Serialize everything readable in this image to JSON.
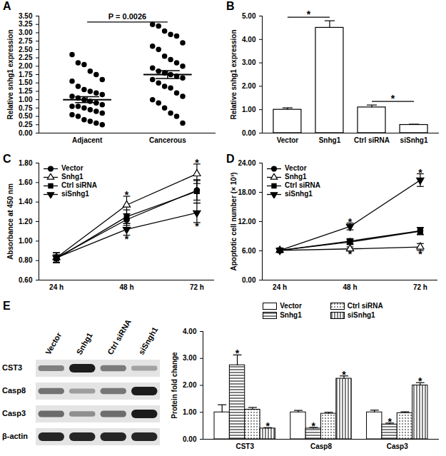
{
  "chart_data": [
    {
      "type": "scatter",
      "title": "A",
      "categories": [
        "Adjacent",
        "Cancerous"
      ],
      "values": [
        [
          2.35,
          2.1,
          2.05,
          1.85,
          1.75,
          1.6,
          1.55,
          1.4,
          1.3,
          1.25,
          1.2,
          1.15,
          1.1,
          1.05,
          1.0,
          0.95,
          0.9,
          0.85,
          0.8,
          0.8,
          0.75,
          0.7,
          0.65,
          0.6,
          0.55,
          0.5,
          0.4,
          0.35,
          0.3,
          0.25
        ],
        [
          3.25,
          3.2,
          3.05,
          2.95,
          2.9,
          2.7,
          2.6,
          2.5,
          2.3,
          2.2,
          2.1,
          2.0,
          1.95,
          1.85,
          1.8,
          1.75,
          1.7,
          1.65,
          1.6,
          1.5,
          1.4,
          1.35,
          1.2,
          1.1,
          1.0,
          0.9,
          0.75,
          0.6,
          0.5,
          0.3
        ]
      ],
      "mean": [
        1.0,
        1.75
      ],
      "sem": [
        0.09,
        0.12
      ],
      "color": "#000000",
      "ylabel": "Relative snhg1 expression",
      "ylim": [
        0,
        3.5
      ],
      "yticks": [
        {
          "value": 0,
          "label": "0.00"
        },
        0.25,
        {
          "value": 0.5,
          "label": "0.50"
        },
        0.75,
        {
          "value": 1,
          "label": "1.00"
        },
        1.25,
        {
          "value": 1.5,
          "label": "1.50"
        },
        1.75,
        {
          "value": 2,
          "label": "2.00"
        },
        2.25,
        {
          "value": 2.5,
          "label": "2.50"
        },
        2.75,
        {
          "value": 3,
          "label": "3.00"
        },
        3.25,
        {
          "value": 3.5,
          "label": "3.50"
        }
      ],
      "annotations": [
        {
          "from": "Adjacent",
          "to": "Cancerous",
          "text": "P = 0.0026"
        }
      ]
    },
    {
      "type": "bar",
      "title": "B",
      "categories": [
        "Vector",
        "Snhg1",
        "Ctrl siRNA",
        "siSnhg1"
      ],
      "values": [
        1.0,
        4.5,
        1.1,
        0.35
      ],
      "error": [
        0.08,
        0.3,
        0.1,
        0.03
      ],
      "color": "#ffffff",
      "ylabel": "Relative snhg1 expression",
      "ylim": [
        0,
        5
      ],
      "yticks": [
        {
          "value": 0,
          "label": "0.00"
        },
        {
          "value": 1,
          "label": "1.00"
        },
        {
          "value": 2,
          "label": "2.00"
        },
        {
          "value": 3,
          "label": "3.00"
        },
        {
          "value": 4,
          "label": "4.00"
        },
        {
          "value": 5,
          "label": "5.00"
        }
      ],
      "annotations": [
        {
          "from": "Vector",
          "to": "Snhg1",
          "text": "*"
        },
        {
          "from": "Ctrl siRNA",
          "to": "siSnhg1",
          "text": "*"
        }
      ]
    },
    {
      "type": "line",
      "title": "C",
      "categories": [
        "24 h",
        "48 h",
        "72 h"
      ],
      "series": [
        {
          "name": "Vector",
          "marker": "circle",
          "color": "#000000",
          "values": [
            0.83,
            1.22,
            1.52
          ],
          "error": [
            0.05,
            0.06,
            0.1
          ]
        },
        {
          "name": "Snhg1",
          "marker": "triangle-open",
          "color": "#000000",
          "values": [
            0.83,
            1.37,
            1.69
          ],
          "error": [
            0.05,
            0.09,
            0.1
          ]
        },
        {
          "name": "Ctrl siRNA",
          "marker": "square",
          "color": "#000000",
          "values": [
            0.82,
            1.25,
            1.51
          ],
          "error": [
            0.04,
            0.07,
            0.12
          ]
        },
        {
          "name": "siSnhg1",
          "marker": "triangle-down",
          "color": "#000000",
          "values": [
            0.83,
            1.12,
            1.29
          ],
          "error": [
            0.05,
            0.06,
            0.1
          ]
        }
      ],
      "ylabel": "Absorbance at 450 nm",
      "ylim": [
        0.6,
        1.8
      ],
      "yticks": [
        {
          "value": 0.6,
          "label": "0.60"
        },
        {
          "value": 0.8,
          "label": "0.80"
        },
        {
          "value": 1,
          "label": "1.00"
        },
        {
          "value": 1.2,
          "label": "1.20"
        },
        {
          "value": 1.4,
          "label": "1.40"
        },
        {
          "value": 1.6,
          "label": "1.60"
        },
        {
          "value": 1.8,
          "label": "1.80"
        }
      ],
      "legend": "upper left",
      "annotations": [
        {
          "x": "48 h",
          "series": "Snhg1",
          "text": "*"
        },
        {
          "x": "48 h",
          "series": "siSnhg1",
          "text": "*"
        },
        {
          "x": "72 h",
          "series": "Snhg1",
          "text": "*"
        },
        {
          "x": "72 h",
          "series": "siSnhg1",
          "text": "*"
        }
      ]
    },
    {
      "type": "line",
      "title": "D",
      "categories": [
        "24 h",
        "48 h",
        "72 h"
      ],
      "series": [
        {
          "name": "Vector",
          "marker": "circle",
          "color": "#000000",
          "values": [
            6.1,
            8.0,
            10.1
          ],
          "error": [
            0.3,
            0.5,
            0.7
          ]
        },
        {
          "name": "Snhg1",
          "marker": "triangle-open",
          "color": "#000000",
          "values": [
            6.1,
            6.4,
            6.8
          ],
          "error": [
            0.3,
            0.4,
            0.7
          ]
        },
        {
          "name": "Ctrl siRNA",
          "marker": "square",
          "color": "#000000",
          "values": [
            6.1,
            7.8,
            10.0
          ],
          "error": [
            0.3,
            0.5,
            0.7
          ]
        },
        {
          "name": "siSnhg1",
          "marker": "triangle-down",
          "color": "#000000",
          "values": [
            6.1,
            11.0,
            20.5
          ],
          "error": [
            0.3,
            0.7,
            1.3
          ]
        }
      ],
      "ylabel": "Apoptotic cell number (× 10³)",
      "ylim": [
        0,
        24
      ],
      "yticks": [
        {
          "value": 0,
          "label": "0.00"
        },
        {
          "value": 6,
          "label": "6.00"
        },
        {
          "value": 12,
          "label": "12.00"
        },
        {
          "value": 18,
          "label": "18.00"
        },
        {
          "value": 24,
          "label": "24.00"
        }
      ],
      "legend": "upper left",
      "annotations": [
        {
          "x": "48 h",
          "series": "siSnhg1",
          "text": "*"
        },
        {
          "x": "48 h",
          "series": "Snhg1",
          "text": "*"
        },
        {
          "x": "72 h",
          "series": "siSnhg1",
          "text": "*"
        },
        {
          "x": "72 h",
          "series": "Snhg1",
          "text": "*"
        }
      ]
    },
    {
      "type": "blot",
      "title": "E",
      "lanes": [
        "Vector",
        "Snhg1",
        "Ctrl siRNA",
        "siSngh1"
      ],
      "rows": [
        "CST3",
        "Casp8",
        "Casp3",
        "β-actin"
      ]
    },
    {
      "type": "bar",
      "categories": [
        "CST3",
        "Casp8",
        "Casp3"
      ],
      "series": [
        {
          "name": "Vector",
          "values": [
            1.0,
            1.0,
            1.0
          ],
          "error": [
            0.28,
            0.07,
            0.08
          ]
        },
        {
          "name": "Snhg1",
          "values": [
            2.75,
            0.4,
            0.55
          ],
          "error": [
            0.38,
            0.04,
            0.05
          ]
        },
        {
          "name": "Ctrl siRNA",
          "values": [
            1.1,
            0.95,
            0.97
          ],
          "error": [
            0.08,
            0.05,
            0.05
          ]
        },
        {
          "name": "siSnhg1",
          "values": [
            0.4,
            2.25,
            2.0
          ],
          "error": [
            0.03,
            0.1,
            0.1
          ]
        }
      ],
      "ylabel": "Protein fold change",
      "ylim": [
        0,
        4
      ],
      "yticks": [
        {
          "value": 0,
          "label": "0.00"
        },
        {
          "value": 1,
          "label": "1.00"
        },
        {
          "value": 2,
          "label": "2.00"
        },
        {
          "value": 3,
          "label": "3.00"
        },
        {
          "value": 4,
          "label": "4.00"
        }
      ],
      "legend": "top",
      "annotations": [
        {
          "x": "CST3",
          "series": "Snhg1",
          "text": "*"
        },
        {
          "x": "CST3",
          "series": "siSnhg1",
          "text": "*"
        },
        {
          "x": "Casp8",
          "series": "Snhg1",
          "text": "*"
        },
        {
          "x": "Casp8",
          "series": "siSnhg1",
          "text": "*"
        },
        {
          "x": "Casp3",
          "series": "Snhg1",
          "text": "*"
        },
        {
          "x": "Casp3",
          "series": "siSnhg1",
          "text": "*"
        }
      ]
    }
  ]
}
